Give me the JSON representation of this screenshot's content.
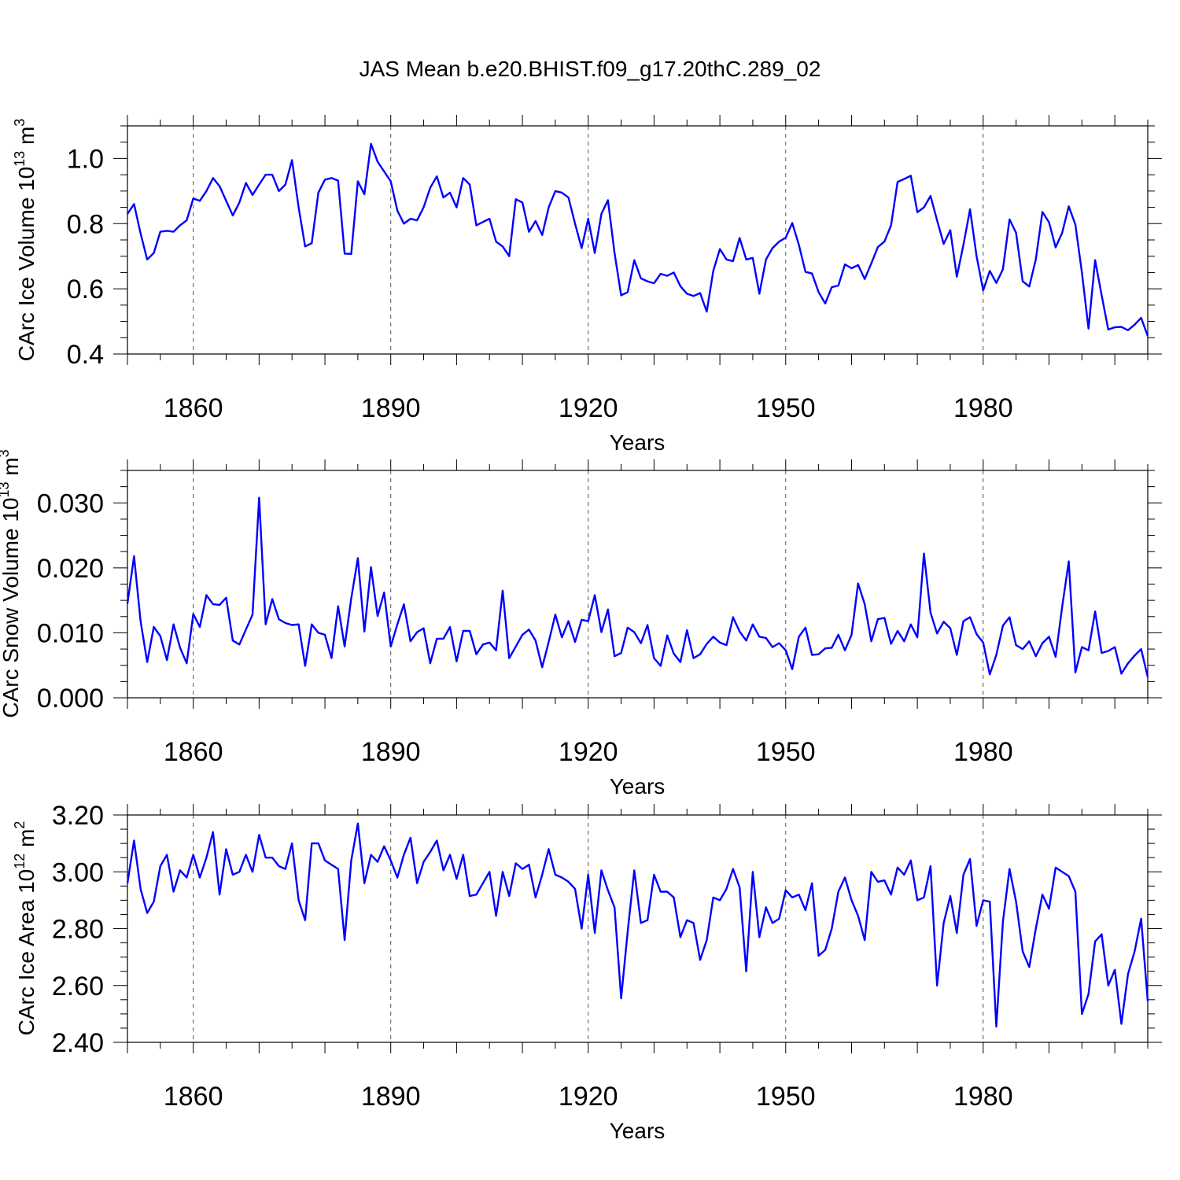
{
  "title": "JAS Mean b.e20.BHIST.f09_g17.20thC.289_02",
  "line_color": "#0000ff",
  "chart_data": [
    {
      "type": "line",
      "name": "ice-volume",
      "ylabel": "CArc Ice Volume 10",
      "ylabel_sup": "13",
      "ylabel_unit": " m",
      "ylabel_unit_sup": "3",
      "xlabel": "Years",
      "xlim": [
        1850,
        2005
      ],
      "ylim": [
        0.4,
        1.1
      ],
      "x_ticks": [
        "1860",
        "1890",
        "1920",
        "1950",
        "1980"
      ],
      "y_ticks": [
        "0.4",
        "0.6",
        "0.8",
        "1.0"
      ],
      "x_start": 1850,
      "values": [
        0.83,
        0.86,
        0.77,
        0.69,
        0.71,
        0.775,
        0.778,
        0.775,
        0.795,
        0.81,
        0.877,
        0.87,
        0.9,
        0.94,
        0.915,
        0.87,
        0.825,
        0.865,
        0.925,
        0.888,
        0.92,
        0.95,
        0.95,
        0.9,
        0.92,
        0.995,
        0.85,
        0.73,
        0.74,
        0.895,
        0.935,
        0.94,
        0.932,
        0.708,
        0.707,
        0.93,
        0.89,
        1.045,
        0.99,
        0.96,
        0.93,
        0.84,
        0.8,
        0.815,
        0.81,
        0.85,
        0.91,
        0.945,
        0.88,
        0.895,
        0.85,
        0.94,
        0.92,
        0.795,
        0.805,
        0.815,
        0.745,
        0.73,
        0.7,
        0.875,
        0.865,
        0.775,
        0.808,
        0.765,
        0.85,
        0.9,
        0.895,
        0.88,
        0.8,
        0.725,
        0.815,
        0.71,
        0.83,
        0.872,
        0.71,
        0.58,
        0.59,
        0.688,
        0.632,
        0.623,
        0.617,
        0.646,
        0.64,
        0.65,
        0.608,
        0.585,
        0.578,
        0.587,
        0.53,
        0.655,
        0.722,
        0.69,
        0.685,
        0.756,
        0.69,
        0.695,
        0.585,
        0.69,
        0.725,
        0.745,
        0.757,
        0.802,
        0.735,
        0.652,
        0.647,
        0.59,
        0.555,
        0.605,
        0.61,
        0.675,
        0.663,
        0.673,
        0.63,
        0.678,
        0.728,
        0.745,
        0.795,
        0.928,
        0.937,
        0.947,
        0.835,
        0.85,
        0.885,
        0.81,
        0.738,
        0.78,
        0.637,
        0.735,
        0.844,
        0.7,
        0.595,
        0.655,
        0.618,
        0.66,
        0.813,
        0.772,
        0.623,
        0.607,
        0.69,
        0.836,
        0.804,
        0.727,
        0.772,
        0.853,
        0.797,
        0.65,
        0.478,
        0.688,
        0.58,
        0.475,
        0.482,
        0.483,
        0.473,
        0.49,
        0.511,
        0.455
      ]
    },
    {
      "type": "line",
      "name": "snow-volume",
      "ylabel": "CArc Snow Volume 10",
      "ylabel_sup": "13",
      "ylabel_unit": " m",
      "ylabel_unit_sup": "3",
      "xlabel": "Years",
      "xlim": [
        1850,
        2005
      ],
      "ylim": [
        0.0,
        0.035
      ],
      "x_ticks": [
        "1860",
        "1890",
        "1920",
        "1950",
        "1980"
      ],
      "y_ticks": [
        "0.000",
        "0.010",
        "0.020",
        "0.030"
      ],
      "x_start": 1850,
      "values": [
        0.0145,
        0.0218,
        0.0118,
        0.0055,
        0.0109,
        0.0095,
        0.0058,
        0.0113,
        0.0077,
        0.0053,
        0.0129,
        0.0109,
        0.0158,
        0.0144,
        0.0143,
        0.0154,
        0.0088,
        0.0082,
        0.0105,
        0.0128,
        0.0308,
        0.0113,
        0.0152,
        0.0121,
        0.0115,
        0.0112,
        0.0113,
        0.0049,
        0.0113,
        0.01,
        0.0097,
        0.0061,
        0.0141,
        0.0079,
        0.0153,
        0.0215,
        0.0102,
        0.0201,
        0.0126,
        0.0162,
        0.0079,
        0.0113,
        0.0144,
        0.0087,
        0.0101,
        0.0107,
        0.0053,
        0.0091,
        0.0091,
        0.0109,
        0.0056,
        0.0103,
        0.0103,
        0.0067,
        0.0082,
        0.0085,
        0.0073,
        0.0165,
        0.0061,
        0.0079,
        0.0097,
        0.0105,
        0.0088,
        0.0047,
        0.0086,
        0.0128,
        0.0093,
        0.0118,
        0.0086,
        0.012,
        0.0118,
        0.0158,
        0.0101,
        0.0136,
        0.0064,
        0.0069,
        0.0108,
        0.0101,
        0.0084,
        0.0112,
        0.0061,
        0.0049,
        0.0096,
        0.0068,
        0.0055,
        0.0104,
        0.0061,
        0.0067,
        0.0083,
        0.0094,
        0.0085,
        0.0081,
        0.0124,
        0.0102,
        0.0088,
        0.0113,
        0.0094,
        0.0092,
        0.0078,
        0.0084,
        0.0073,
        0.0044,
        0.0094,
        0.0108,
        0.0066,
        0.0067,
        0.0076,
        0.0077,
        0.0097,
        0.0073,
        0.0097,
        0.0176,
        0.0144,
        0.0087,
        0.0121,
        0.0123,
        0.0083,
        0.0103,
        0.0087,
        0.0113,
        0.0093,
        0.0222,
        0.0131,
        0.0099,
        0.0117,
        0.0107,
        0.0066,
        0.0118,
        0.0124,
        0.0098,
        0.0085,
        0.0036,
        0.0066,
        0.0111,
        0.0124,
        0.0081,
        0.0075,
        0.0087,
        0.0064,
        0.0084,
        0.0094,
        0.0063,
        0.014,
        0.021,
        0.0039,
        0.0078,
        0.0073,
        0.0133,
        0.0069,
        0.0072,
        0.0078,
        0.0037,
        0.0053,
        0.0065,
        0.0075,
        0.0032
      ]
    },
    {
      "type": "line",
      "name": "ice-area",
      "ylabel": "CArc Ice Area 10",
      "ylabel_sup": "12",
      "ylabel_unit": " m",
      "ylabel_unit_sup": "2",
      "xlabel": "Years",
      "xlim": [
        1850,
        2005
      ],
      "ylim": [
        2.4,
        3.2
      ],
      "x_ticks": [
        "1860",
        "1890",
        "1920",
        "1950",
        "1980"
      ],
      "y_ticks": [
        "2.40",
        "2.60",
        "2.80",
        "3.00",
        "3.20"
      ],
      "x_start": 1850,
      "values": [
        2.96,
        3.11,
        2.94,
        2.855,
        2.895,
        3.02,
        3.06,
        2.93,
        3.005,
        2.98,
        3.06,
        2.98,
        3.05,
        3.14,
        2.92,
        3.08,
        2.99,
        3.0,
        3.06,
        3.0,
        3.13,
        3.05,
        3.05,
        3.02,
        3.01,
        3.1,
        2.9,
        2.83,
        3.1,
        3.1,
        3.04,
        3.025,
        3.01,
        2.76,
        3.04,
        3.17,
        2.96,
        3.06,
        3.035,
        3.09,
        3.04,
        2.98,
        3.06,
        3.12,
        2.96,
        3.035,
        3.07,
        3.11,
        3.005,
        3.06,
        2.975,
        3.06,
        2.915,
        2.92,
        2.96,
        3.0,
        2.845,
        3.0,
        2.915,
        3.03,
        3.01,
        3.025,
        2.91,
        2.99,
        3.08,
        2.99,
        2.98,
        2.965,
        2.94,
        2.8,
        2.99,
        2.785,
        3.005,
        2.935,
        2.875,
        2.555,
        2.79,
        3.005,
        2.82,
        2.83,
        2.99,
        2.93,
        2.93,
        2.91,
        2.77,
        2.83,
        2.82,
        2.69,
        2.76,
        2.91,
        2.9,
        2.94,
        3.01,
        2.945,
        2.65,
        3.0,
        2.77,
        2.875,
        2.82,
        2.835,
        2.935,
        2.91,
        2.92,
        2.865,
        2.96,
        2.705,
        2.725,
        2.8,
        2.93,
        2.98,
        2.9,
        2.845,
        2.76,
        3.0,
        2.965,
        2.97,
        2.92,
        3.015,
        2.99,
        3.04,
        2.9,
        2.91,
        3.02,
        2.6,
        2.82,
        2.915,
        2.785,
        2.99,
        3.045,
        2.81,
        2.9,
        2.895,
        2.455,
        2.825,
        3.01,
        2.895,
        2.72,
        2.665,
        2.8,
        2.92,
        2.87,
        3.015,
        3.0,
        2.985,
        2.93,
        2.5,
        2.57,
        2.755,
        2.78,
        2.6,
        2.655,
        2.465,
        2.64,
        2.72,
        2.835,
        2.545
      ]
    }
  ]
}
